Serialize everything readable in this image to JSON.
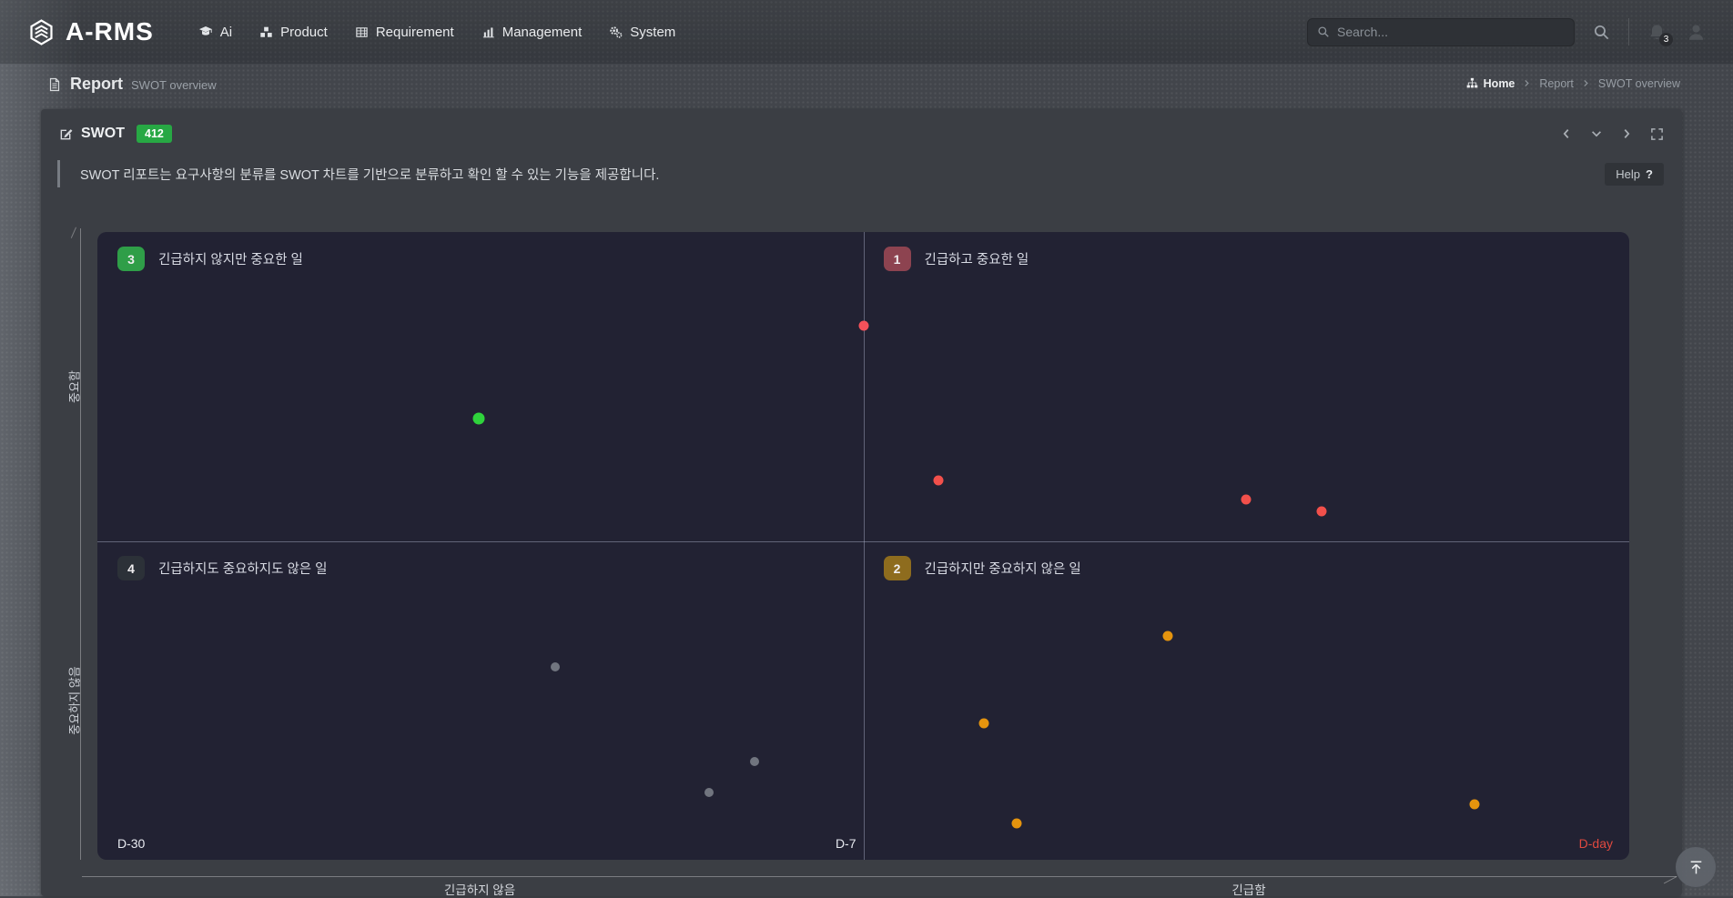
{
  "navbar": {
    "logo_text": "A-RMS",
    "items": [
      {
        "label": "Ai",
        "icon": "graduation-cap"
      },
      {
        "label": "Product",
        "icon": "cubes"
      },
      {
        "label": "Requirement",
        "icon": "table"
      },
      {
        "label": "Management",
        "icon": "bar-chart"
      },
      {
        "label": "System",
        "icon": "cogs"
      }
    ],
    "search": {
      "placeholder": "Search..."
    },
    "notification_badge": "3"
  },
  "page_header": {
    "title": "Report",
    "subtitle": "SWOT overview",
    "breadcrumb": [
      {
        "label": "Home",
        "icon": "sitemap"
      },
      {
        "label": "Report"
      },
      {
        "label": "SWOT overview"
      }
    ]
  },
  "panel": {
    "title": "SWOT",
    "count_badge": "412",
    "description": "SWOT 리포트는 요구사항의 분류를 SWOT 차트를 기반으로 분류하고 확인 할 수 있는 기능을 제공합니다.",
    "help_label": "Help",
    "help_symbol": "?"
  },
  "chart_data": {
    "type": "scatter",
    "title": "SWOT / Eisenhower quadrant chart",
    "background": "#222233",
    "quadrants": [
      {
        "number": "3",
        "label": "긴급하지 않지만 중요한 일",
        "badge_color": "#2f9e48",
        "position": "top-left"
      },
      {
        "number": "1",
        "label": "긴급하고 중요한 일",
        "badge_color": "#8d4350",
        "position": "top-right"
      },
      {
        "number": "4",
        "label": "긴급하지도 중요하지도 않은 일",
        "badge_color": "#2c3138",
        "position": "bottom-left"
      },
      {
        "number": "2",
        "label": "긴급하지만 중요하지 않은 일",
        "badge_color": "#8e6c1e",
        "position": "bottom-right"
      }
    ],
    "x_axis": {
      "left_label": "긴급하지 않음",
      "right_label": "긴급함",
      "tick_left": "D-30",
      "tick_center": "D-7",
      "tick_right": "D-day",
      "dday_color": "#e0493f"
    },
    "y_axis": {
      "top_label": "중요함",
      "bottom_label": "중요하지 않음"
    },
    "points": [
      {
        "x_pct": 24.9,
        "y_pct": 29.7,
        "color": "#2fd33c",
        "quadrant": 3,
        "size": 13
      },
      {
        "x_pct": 50.0,
        "y_pct": 14.9,
        "color": "#f6515a",
        "quadrant": 1,
        "size": 11
      },
      {
        "x_pct": 54.9,
        "y_pct": 39.6,
        "color": "#f2504b",
        "quadrant": 1,
        "size": 11
      },
      {
        "x_pct": 75.0,
        "y_pct": 42.6,
        "color": "#f2504b",
        "quadrant": 1,
        "size": 11
      },
      {
        "x_pct": 79.9,
        "y_pct": 44.5,
        "color": "#f2504b",
        "quadrant": 1,
        "size": 11
      },
      {
        "x_pct": 29.9,
        "y_pct": 69.3,
        "color": "#71757f",
        "quadrant": 4,
        "size": 10
      },
      {
        "x_pct": 42.9,
        "y_pct": 84.3,
        "color": "#71757f",
        "quadrant": 4,
        "size": 10
      },
      {
        "x_pct": 39.9,
        "y_pct": 89.3,
        "color": "#71757f",
        "quadrant": 4,
        "size": 10
      },
      {
        "x_pct": 69.9,
        "y_pct": 64.3,
        "color": "#e5940e",
        "quadrant": 2,
        "size": 11
      },
      {
        "x_pct": 57.9,
        "y_pct": 78.3,
        "color": "#e5940e",
        "quadrant": 2,
        "size": 11
      },
      {
        "x_pct": 60.0,
        "y_pct": 94.2,
        "color": "#e5940e",
        "quadrant": 2,
        "size": 11
      },
      {
        "x_pct": 89.9,
        "y_pct": 91.2,
        "color": "#e5940e",
        "quadrant": 2,
        "size": 11
      }
    ]
  }
}
